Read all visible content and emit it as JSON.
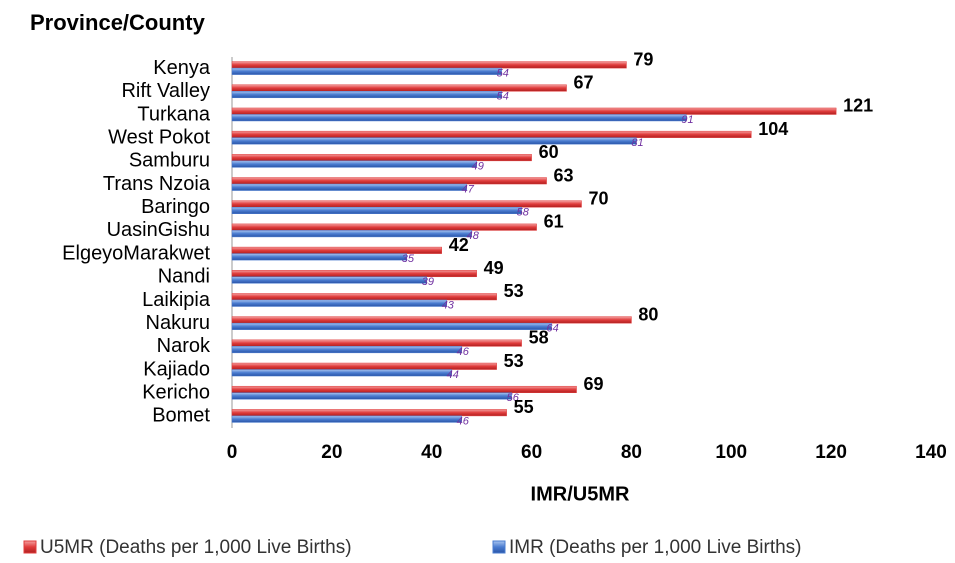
{
  "chart_data": {
    "type": "hbar",
    "title": "Province/County",
    "x_label": "IMR/U5MR",
    "categories": [
      "Kenya",
      "Rift Valley",
      "Turkana",
      "West Pokot",
      "Samburu",
      "Trans Nzoia",
      "Baringo",
      "UasinGishu",
      "ElgeyoMarakwet",
      "Nandi",
      "Laikipia",
      "Nakuru",
      "Narok",
      "Kajiado",
      "Kericho",
      "Bomet"
    ],
    "series": [
      {
        "name": "U5MR (Deaths per 1,000 Live Births)",
        "color": "#e03c3c",
        "values": [
          79,
          67,
          121,
          104,
          60,
          63,
          70,
          61,
          42,
          49,
          53,
          80,
          58,
          53,
          69,
          55
        ]
      },
      {
        "name": "IMR (Deaths per 1,000 Live Births)",
        "color": "#4a7cd0",
        "values": [
          54,
          54,
          91,
          81,
          49,
          47,
          58,
          48,
          35,
          39,
          43,
          64,
          46,
          44,
          56,
          46
        ]
      }
    ],
    "xlim": [
      0,
      140
    ],
    "xticks": [
      0,
      20,
      40,
      60,
      80,
      100,
      120,
      140
    ],
    "grid": false,
    "legend": "bottom"
  }
}
